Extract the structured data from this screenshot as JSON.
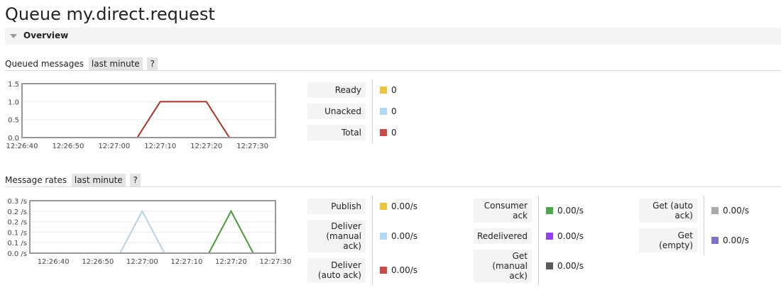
{
  "title": "Queue my.direct.request",
  "overview": {
    "label": "Overview"
  },
  "queued": {
    "heading": "Queued messages",
    "range": "last minute",
    "help": "?",
    "legend": [
      {
        "label": "Ready",
        "value": "0",
        "color": "#edc240"
      },
      {
        "label": "Unacked",
        "value": "0",
        "color": "#afd8f8"
      },
      {
        "label": "Total",
        "value": "0",
        "color": "#cb4b4b"
      }
    ]
  },
  "rates": {
    "heading": "Message rates",
    "range": "last minute",
    "help": "?",
    "legend": [
      [
        {
          "label": "Publish",
          "value": "0.00/s",
          "color": "#edc240"
        },
        {
          "label": "Deliver (manual ack)",
          "value": "0.00/s",
          "color": "#afd8f8"
        },
        {
          "label": "Deliver (auto ack)",
          "value": "0.00/s",
          "color": "#cb4b4b"
        }
      ],
      [
        {
          "label": "Consumer ack",
          "value": "0.00/s",
          "color": "#4da74d"
        },
        {
          "label": "Redelivered",
          "value": "0.00/s",
          "color": "#9440ed"
        },
        {
          "label": "Get (manual ack)",
          "value": "0.00/s",
          "color": "#5c5c5c"
        }
      ],
      [
        {
          "label": "Get (auto ack)",
          "value": "0.00/s",
          "color": "#aaaaaa"
        },
        {
          "label": "Get (empty)",
          "value": "0.00/s",
          "color": "#7d72c8"
        }
      ]
    ]
  },
  "chart_data": [
    {
      "type": "line",
      "xlim": [
        "12:26:40",
        "12:27:35"
      ],
      "ylim": [
        0,
        1.5
      ],
      "grid": true,
      "xticks": [
        "12:26:40",
        "12:26:50",
        "12:27:00",
        "12:27:10",
        "12:27:20",
        "12:27:30"
      ],
      "yticks": [
        "0.0",
        "0.5",
        "1.0",
        "1.5"
      ],
      "series": [
        {
          "name": "Ready",
          "color": "#d4b838",
          "x": [
            "12:26:40",
            "12:27:05",
            "12:27:25",
            "12:27:35"
          ],
          "y": [
            0,
            0,
            0,
            0
          ]
        },
        {
          "name": "Total",
          "color": "#a8322d",
          "x": [
            "12:26:40",
            "12:27:05",
            "12:27:10",
            "12:27:20",
            "12:27:25",
            "12:27:35"
          ],
          "y": [
            0,
            0,
            1,
            1,
            0,
            0
          ]
        }
      ]
    },
    {
      "type": "line",
      "xlim": [
        "12:26:34.7",
        "12:27:30"
      ],
      "ylim": [
        0,
        0.25
      ],
      "grid": true,
      "xticks": [
        "12:26:40",
        "12:26:50",
        "12:27:00",
        "12:27:10",
        "12:27:20",
        "12:27:30"
      ],
      "yticks": [
        "0.0 /s",
        "0.1 /s",
        "0.1 /s",
        "0.2 /s",
        "0.2 /s",
        "0.3 /s"
      ],
      "series": [
        {
          "name": "Deliver (manual ack)",
          "color": "#b4d2ea",
          "x": [
            "12:26:34.7",
            "12:26:55",
            "12:27:00",
            "12:27:05",
            "12:27:30"
          ],
          "y": [
            0,
            0,
            0.2,
            0,
            0
          ]
        },
        {
          "name": "Consumer ack",
          "color": "#4a9a3a",
          "x": [
            "12:26:34.7",
            "12:27:15",
            "12:27:20",
            "12:27:25",
            "12:27:30"
          ],
          "y": [
            0,
            0,
            0.2,
            0,
            0
          ]
        },
        {
          "name": "Get (empty)",
          "color": "#7068b8",
          "x": [
            "12:26:34.7",
            "12:27:30"
          ],
          "y": [
            0,
            0
          ]
        }
      ]
    }
  ]
}
